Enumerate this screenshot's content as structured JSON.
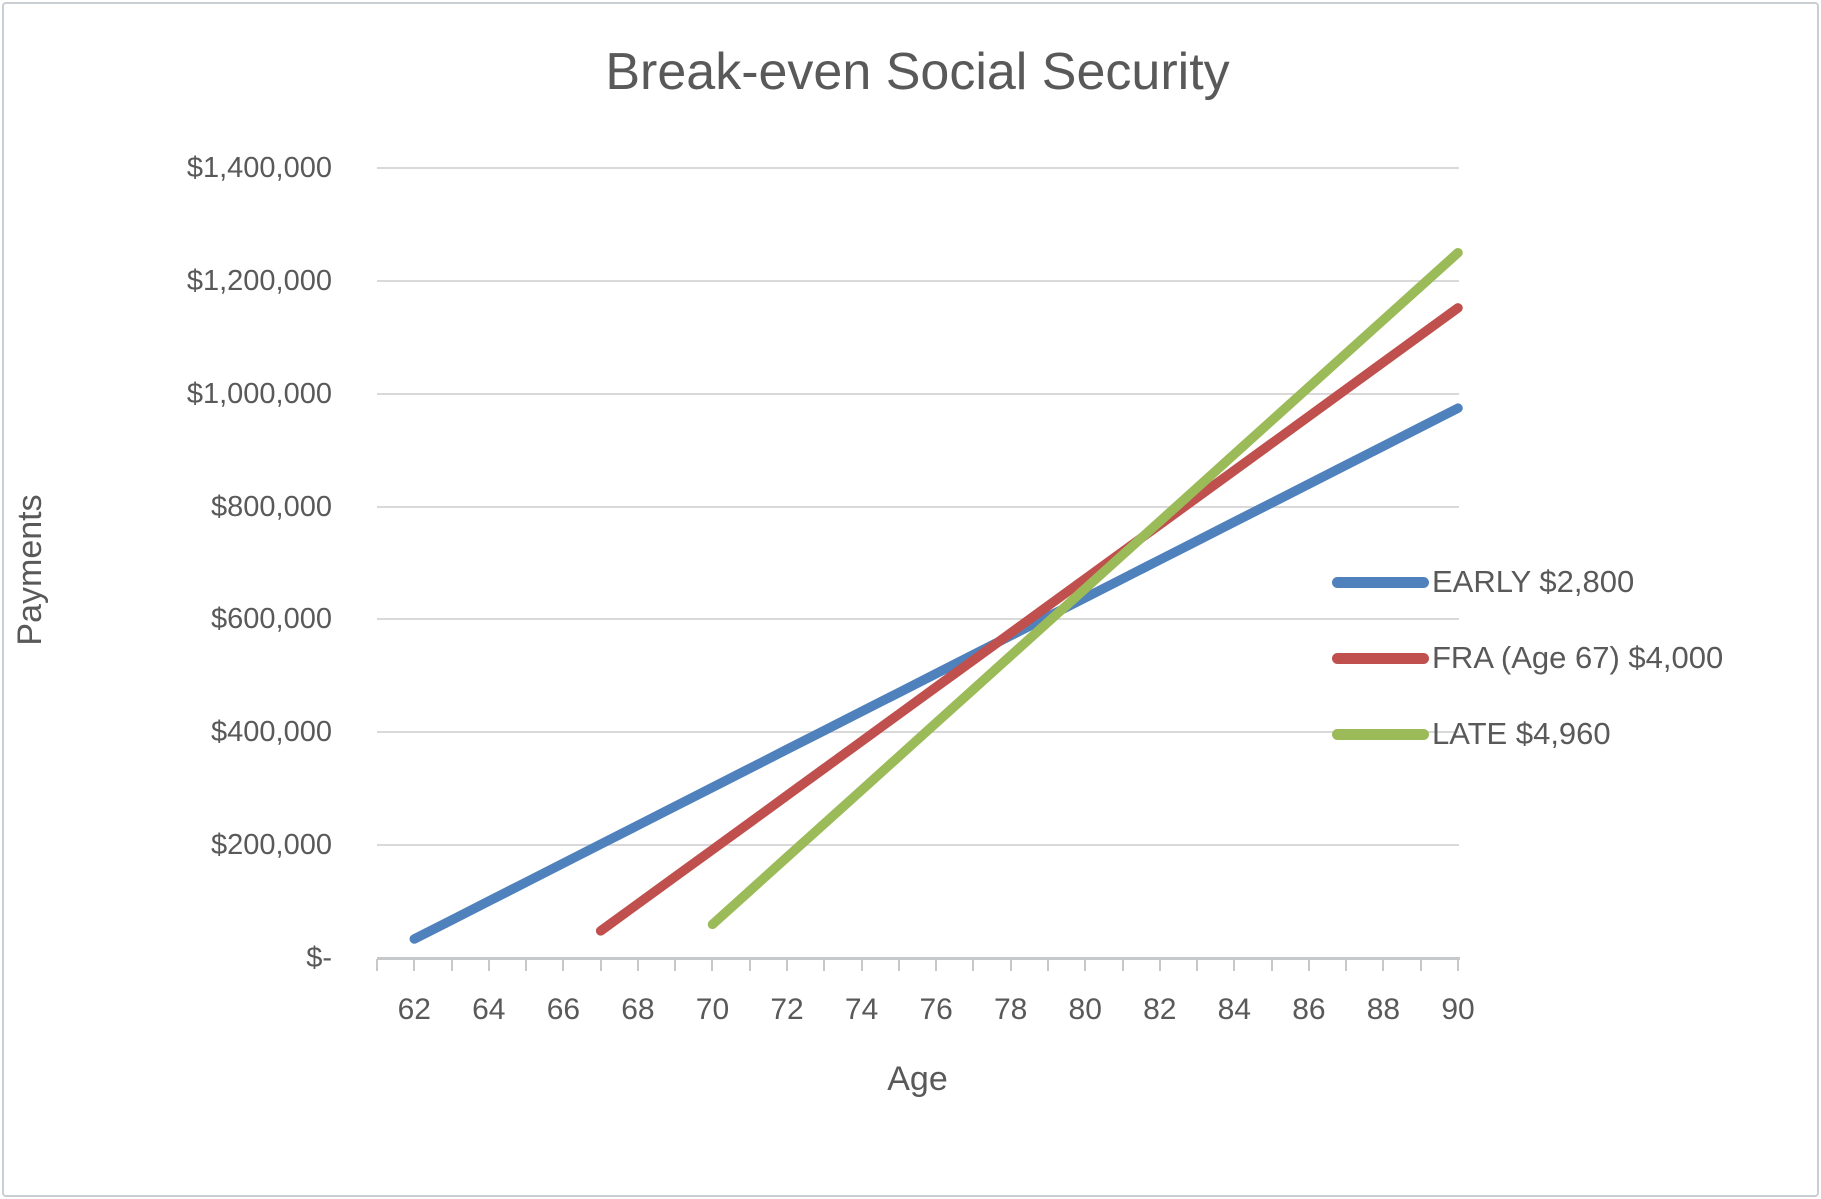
{
  "title": "Break-even Social Security",
  "colors": {
    "early_line": "#4F81BD",
    "fra_line": "#C0504D",
    "late_line": "#9BBB59",
    "text": "#595959",
    "gridline": "#d9d9d9",
    "axis": "#c6c9cc",
    "frame_border": "#c9ced3",
    "background": "#ffffff"
  },
  "chart_data": {
    "type": "line",
    "title": "Break-even Social Security",
    "xlabel": "Age",
    "ylabel": "Payments",
    "xlim": [
      61.5,
      90.5
    ],
    "ylim": [
      0,
      1400000
    ],
    "grid": "horizontal",
    "legend_position": "right",
    "x_tick_labels": [
      62,
      64,
      66,
      68,
      70,
      72,
      74,
      76,
      78,
      80,
      82,
      84,
      86,
      88,
      90
    ],
    "x_minor_tick_step_years": 1,
    "y_ticks": [
      {
        "value": 0,
        "label": "$-"
      },
      {
        "value": 200000,
        "label": "$200,000"
      },
      {
        "value": 400000,
        "label": "$400,000"
      },
      {
        "value": 600000,
        "label": "$600,000"
      },
      {
        "value": 800000,
        "label": "$800,000"
      },
      {
        "value": 1000000,
        "label": "$1,000,000"
      },
      {
        "value": 1200000,
        "label": "$1,200,000"
      },
      {
        "value": 1400000,
        "label": "$1,400,000"
      }
    ],
    "series": [
      {
        "name": "EARLY $2,800",
        "color": "#4F81BD",
        "start_age": 62,
        "monthly_benefit": 2800,
        "annual_benefit": 33600,
        "ages": [
          62,
          63,
          64,
          65,
          66,
          67,
          68,
          69,
          70,
          71,
          72,
          73,
          74,
          75,
          76,
          77,
          78,
          79,
          80,
          81,
          82,
          83,
          84,
          85,
          86,
          87,
          88,
          89,
          90
        ],
        "values": [
          33600,
          67200,
          100800,
          134400,
          168000,
          201600,
          235200,
          268800,
          302400,
          336000,
          369600,
          403200,
          436800,
          470400,
          504000,
          537600,
          571200,
          604800,
          638400,
          672000,
          705600,
          739200,
          772800,
          806400,
          840000,
          873600,
          907200,
          940800,
          974400
        ]
      },
      {
        "name": "FRA (Age 67) $4,000",
        "color": "#C0504D",
        "start_age": 67,
        "monthly_benefit": 4000,
        "annual_benefit": 48000,
        "ages": [
          67,
          68,
          69,
          70,
          71,
          72,
          73,
          74,
          75,
          76,
          77,
          78,
          79,
          80,
          81,
          82,
          83,
          84,
          85,
          86,
          87,
          88,
          89,
          90
        ],
        "values": [
          48000,
          96000,
          144000,
          192000,
          240000,
          288000,
          336000,
          384000,
          432000,
          480000,
          528000,
          576000,
          624000,
          672000,
          720000,
          768000,
          816000,
          864000,
          912000,
          960000,
          1008000,
          1056000,
          1104000,
          1152000
        ]
      },
      {
        "name": "LATE $4,960",
        "color": "#9BBB59",
        "start_age": 70,
        "monthly_benefit": 4960,
        "annual_benefit": 59520,
        "ages": [
          70,
          71,
          72,
          73,
          74,
          75,
          76,
          77,
          78,
          79,
          80,
          81,
          82,
          83,
          84,
          85,
          86,
          87,
          88,
          89,
          90
        ],
        "values": [
          59520,
          119040,
          178560,
          238080,
          297600,
          357120,
          416640,
          476160,
          535680,
          595200,
          654720,
          714240,
          773760,
          833280,
          892800,
          952320,
          1011840,
          1071360,
          1130880,
          1190400,
          1249920
        ]
      }
    ]
  }
}
